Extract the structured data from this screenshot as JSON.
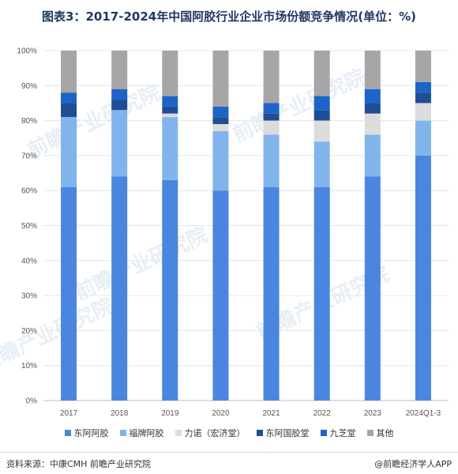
{
  "title": "图表3：2017-2024年中国阿胶行业企业市场份额竞争情况(单位：%)",
  "chart_data": {
    "type": "bar",
    "stacked": true,
    "categories": [
      "2017",
      "2018",
      "2019",
      "2020",
      "2021",
      "2022",
      "2023",
      "2024Q1-3"
    ],
    "ylim": [
      0,
      100
    ],
    "yticks": [
      "0%",
      "10%",
      "20%",
      "30%",
      "40%",
      "50%",
      "60%",
      "70%",
      "80%",
      "90%",
      "100%"
    ],
    "grid": true,
    "legend_position": "bottom",
    "series": [
      {
        "name": "东阿阿胶",
        "color": "#4a86e0",
        "values": [
          61,
          64,
          63,
          60,
          61,
          61,
          64,
          70
        ]
      },
      {
        "name": "福牌阿胶",
        "color": "#82b4ec",
        "values": [
          20,
          19,
          18,
          17,
          15,
          13,
          12,
          10
        ]
      },
      {
        "name": "力诺（宏济堂）",
        "color": "#dcdcdc",
        "values": [
          0,
          0,
          1,
          2,
          4,
          6,
          6,
          5
        ]
      },
      {
        "name": "东阿国胶堂",
        "color": "#1f4e94",
        "values": [
          4,
          3,
          2,
          2,
          2,
          3,
          3,
          3
        ]
      },
      {
        "name": "九芝堂",
        "color": "#1e64c8",
        "values": [
          3,
          3,
          3,
          3,
          3,
          4,
          4,
          3
        ]
      },
      {
        "name": "其他",
        "color": "#a6a6a6",
        "values": [
          12,
          11,
          13,
          16,
          15,
          13,
          11,
          9
        ]
      }
    ]
  },
  "watermark": "前瞻产业研究院",
  "footer": {
    "source": "资料来源：中康CMH 前瞻产业研究院",
    "brand": "@前瞻经济学人APP"
  }
}
